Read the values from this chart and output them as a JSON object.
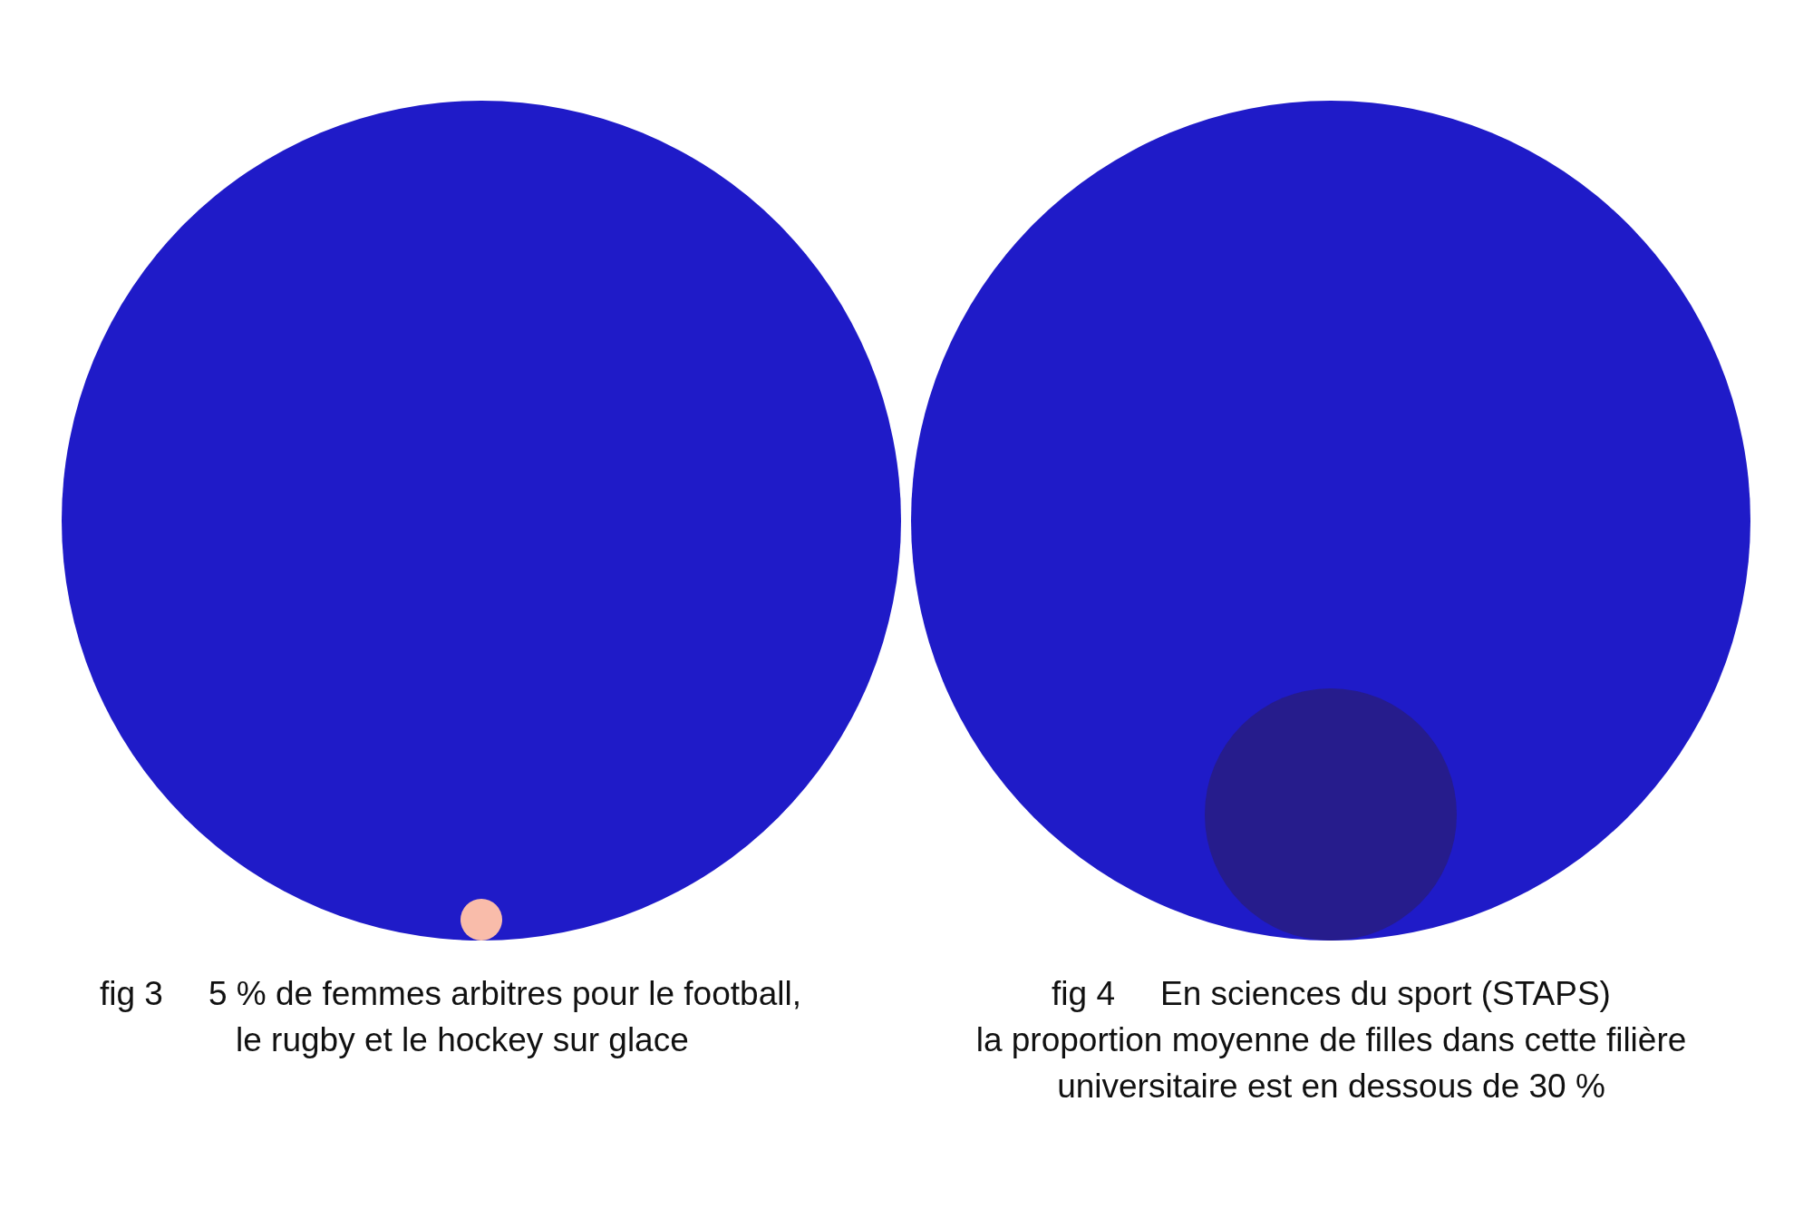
{
  "chart_data": [
    {
      "type": "other",
      "categories": [
        null
      ],
      "values": [
        5
      ],
      "value_labels": [
        "5 %"
      ],
      "colors": [
        "#f9bcaa"
      ],
      "annotations": [
        "fig 3",
        "de femmes arbitres pour le football,",
        "le rugby et le hockey sur glace"
      ]
    },
    {
      "type": "other",
      "categories": [
        null
      ],
      "values": [
        30
      ],
      "value_labels": [
        "30 %"
      ],
      "colors": [
        "#261c8c"
      ],
      "annotations": [
        "fig 4",
        "En sciences du sport (STAPS)",
        "la proportion moyenne de filles dans cette filière",
        "universitaire est en dessous de"
      ]
    }
  ]
}
